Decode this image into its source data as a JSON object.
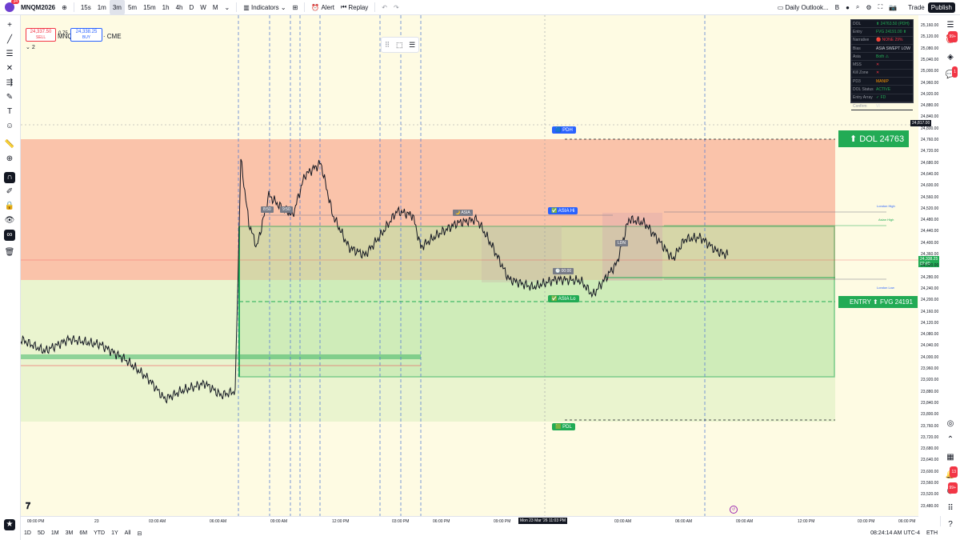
{
  "topbar": {
    "notif_count": "34",
    "symbol": "MNQM2026",
    "timeframes": [
      "15s",
      "1m",
      "3m",
      "5m",
      "15m",
      "1h",
      "4h",
      "D",
      "W",
      "M"
    ],
    "active_timeframe": "3m",
    "indicators_label": "Indicators",
    "alert_label": "Alert",
    "replay_label": "Replay",
    "layout_name": "Daily Outlook...",
    "layout_b": "B",
    "trade_label": "Trade",
    "publish_label": "Publish"
  },
  "symbol_info": {
    "title": "MNQM2026 · 3 · CME",
    "sell_price": "24,337.50",
    "sell_label": "SELL",
    "spread": "0.75",
    "buy_price": "24,338.25",
    "buy_label": "BUY",
    "indicator_count": "2"
  },
  "panel": [
    {
      "k": "DOL",
      "v": "⬆ 24763.50 (PDH)"
    },
    {
      "k": "Entry",
      "v": "FVG 24191.00 ⬆"
    },
    {
      "k": "Narrative",
      "v": "🔴 NONE 29%"
    },
    {
      "k": "Bias",
      "v": "ASIA SWEPT LOW"
    },
    {
      "k": "Asia",
      "v": "Both ⚠"
    },
    {
      "k": "MSS",
      "v": "✕"
    },
    {
      "k": "Kill Zone",
      "v": "✕"
    },
    {
      "k": "PD3",
      "v": "MANIP"
    },
    {
      "k": "DOL Status",
      "v": "ACTIVE"
    },
    {
      "k": "Entry Array",
      "v": "✓ FD"
    },
    {
      "k": "Confirm",
      "v": "VI"
    }
  ],
  "labels": {
    "pdh": "🟦 PDH",
    "pdl": "🟩 PDL",
    "asia_hi": "✅ ASIA Hi",
    "asia_lo": "✅ ASIA Lo",
    "asia_small": "🌙 ASIA",
    "ldn": "LDN",
    "dol": "⬆ DOL 24763",
    "entry": "ENTRY ⬆ FVG 24191",
    "time_tag": "🕐 00:00",
    "ny1": "8:50",
    "ny2": "9:50",
    "london_high": "London High",
    "asian_high": "Asian High",
    "london_low": "London Low"
  },
  "yaxis": {
    "ticks": [
      "25,160.00",
      "25,120.00",
      "25,080.00",
      "25,040.00",
      "25,000.00",
      "24,960.00",
      "24,920.00",
      "24,880.00",
      "24,840.00",
      "24,800.00",
      "24,760.00",
      "24,720.00",
      "24,680.00",
      "24,640.00",
      "24,600.00",
      "24,560.00",
      "24,520.00",
      "24,480.00",
      "24,440.00",
      "24,400.00",
      "24,360.00",
      "24,320.00",
      "24,280.00",
      "24,240.00",
      "24,200.00",
      "24,160.00",
      "24,120.00",
      "24,080.00",
      "24,040.00",
      "24,000.00",
      "23,960.00",
      "23,920.00",
      "23,880.00",
      "23,840.00",
      "23,800.00",
      "23,760.00",
      "23,720.00",
      "23,680.00",
      "23,640.00",
      "23,600.00",
      "23,560.00",
      "23,520.00",
      "23,480.00"
    ],
    "current_price": "24,338.25",
    "current_time": "02:40",
    "crosshair_price": "24,817.00"
  },
  "xaxis": {
    "ticks": [
      "09:00 PM",
      "23",
      "03:00 AM",
      "06:00 AM",
      "09:00 AM",
      "12:00 PM",
      "03:00 PM",
      "06:00 PM",
      "09:00 PM",
      "Mon 23 Mar '26   11:03 PM",
      "03:00 AM",
      "06:00 AM",
      "09:00 AM",
      "12:00 PM",
      "03:00 PM",
      "06:00 PM"
    ]
  },
  "bottombar": {
    "ranges": [
      "1D",
      "5D",
      "1M",
      "3M",
      "6M",
      "YTD",
      "1Y",
      "All"
    ],
    "clock": "08:24:14 AM UTC-4",
    "symbol_type": "ETH"
  },
  "colors": {
    "premium": "#f9b9a0",
    "discount": "#cdeebf",
    "accent_green": "#22ab55",
    "label_blue": "#2962ff"
  }
}
